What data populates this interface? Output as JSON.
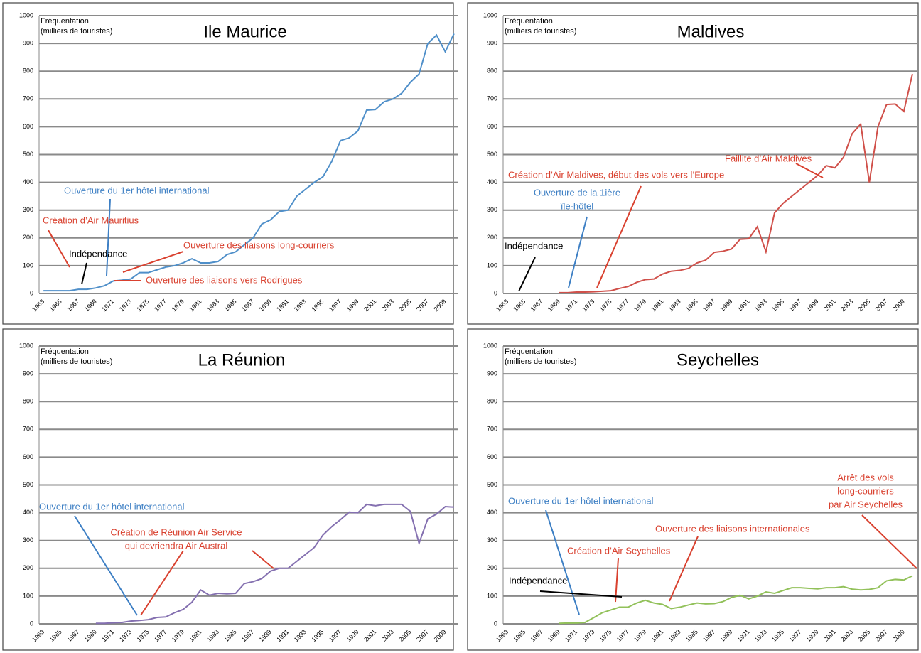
{
  "chart_data": [
    {
      "type": "line",
      "title": "Ile Maurice",
      "y_label": [
        "Fréquentation",
        "(milliers de touristes)"
      ],
      "categories": [
        "1963",
        null,
        "1965",
        null,
        "1967",
        null,
        "1969",
        null,
        "1971",
        null,
        "1973",
        null,
        "1975",
        null,
        "1977",
        null,
        "1979",
        null,
        "1981",
        null,
        "1983",
        null,
        "1985",
        null,
        "1987",
        null,
        "1989",
        null,
        "1991",
        null,
        "1993",
        null,
        "1995",
        null,
        "1997",
        null,
        "1999",
        null,
        "2001",
        null,
        "2003",
        null,
        "2005",
        null,
        "2007",
        null,
        "2009",
        null
      ],
      "values": [
        10,
        10,
        10,
        10,
        15,
        15,
        20,
        28,
        45,
        48,
        52,
        75,
        75,
        85,
        95,
        100,
        110,
        125,
        110,
        110,
        115,
        140,
        150,
        175,
        200,
        250,
        265,
        295,
        300,
        350,
        375,
        400,
        420,
        475,
        550,
        560,
        585,
        660,
        662,
        690,
        700,
        720,
        760,
        790,
        900,
        930,
        870,
        935
      ],
      "color": "#4f8fc9",
      "ylim": [
        0,
        1000
      ],
      "yticks": [
        0,
        100,
        200,
        300,
        400,
        500,
        600,
        700,
        800,
        900,
        1000
      ],
      "grid": true,
      "annotations": [
        {
          "text": [
            "Ouverture du 1er hôtel international"
          ],
          "color": "#3d7fc4"
        },
        {
          "text": [
            "Création d’Air Mauritius"
          ],
          "color": "#d9412f"
        },
        {
          "text": [
            "Indépendance"
          ],
          "color": "#000000"
        },
        {
          "text": [
            "Ouverture des liaisons long-courriers"
          ],
          "color": "#d9412f"
        },
        {
          "text": [
            "Ouverture des liaisons vers Rodrigues"
          ],
          "color": "#d9412f"
        }
      ]
    },
    {
      "type": "line",
      "title": "Maldives",
      "y_label": [
        "Fréquentation",
        "(milliers de touristes)"
      ],
      "categories": [
        "1963",
        null,
        "1965",
        null,
        "1967",
        null,
        "1969",
        null,
        "1971",
        null,
        "1973",
        null,
        "1975",
        null,
        "1977",
        null,
        "1979",
        null,
        "1981",
        null,
        "1983",
        null,
        "1985",
        null,
        "1987",
        null,
        "1989",
        null,
        "1991",
        null,
        "1993",
        null,
        "1995",
        null,
        "1997",
        null,
        "1999",
        null,
        "2001",
        null,
        "2003",
        null,
        "2005",
        null,
        "2007",
        null,
        "2009",
        null
      ],
      "values": [
        null,
        null,
        null,
        null,
        null,
        null,
        3,
        3,
        5,
        5,
        6,
        8,
        10,
        18,
        25,
        40,
        50,
        52,
        70,
        80,
        83,
        90,
        110,
        120,
        148,
        152,
        160,
        195,
        197,
        240,
        150,
        290,
        325,
        350,
        375,
        400,
        425,
        460,
        452,
        490,
        575,
        610,
        400,
        600,
        680,
        682,
        655,
        790
      ],
      "color": "#d0504a",
      "ylim": [
        0,
        1000
      ],
      "yticks": [
        0,
        100,
        200,
        300,
        400,
        500,
        600,
        700,
        800,
        900,
        1000
      ],
      "grid": true,
      "annotations": [
        {
          "text": [
            "Faillite d’Air Maldives"
          ],
          "color": "#d9412f"
        },
        {
          "text": [
            "Création d’Air Maldives, début des vols vers l’Europe"
          ],
          "color": "#d9412f"
        },
        {
          "text": [
            "Ouverture de la 1ière",
            "île-hôtel"
          ],
          "color": "#3d7fc4"
        },
        {
          "text": [
            "Indépendance"
          ],
          "color": "#000000"
        }
      ]
    },
    {
      "type": "line",
      "title": "La Réunion",
      "y_label": [
        "Fréquentation",
        "(milliers de touristes)"
      ],
      "categories": [
        "1963",
        null,
        "1965",
        null,
        "1967",
        null,
        "1969",
        null,
        "1971",
        null,
        "1973",
        null,
        "1975",
        null,
        "1977",
        null,
        "1979",
        null,
        "1981",
        null,
        "1983",
        null,
        "1985",
        null,
        "1987",
        null,
        "1989",
        null,
        "1991",
        null,
        "1993",
        null,
        "1995",
        null,
        "1997",
        null,
        "1999",
        null,
        "2001",
        null,
        "2003",
        null,
        "2005",
        null,
        "2007",
        null,
        "2009",
        null
      ],
      "values": [
        null,
        null,
        null,
        null,
        null,
        null,
        2,
        2,
        4,
        5,
        10,
        12,
        15,
        23,
        25,
        40,
        52,
        78,
        122,
        103,
        110,
        108,
        110,
        145,
        152,
        163,
        190,
        200,
        200,
        225,
        250,
        275,
        320,
        350,
        375,
        402,
        400,
        430,
        425,
        430,
        430,
        430,
        405,
        290,
        378,
        395,
        422,
        420
      ],
      "color": "#8470b0",
      "ylim": [
        0,
        1000
      ],
      "yticks": [
        0,
        100,
        200,
        300,
        400,
        500,
        600,
        700,
        800,
        900,
        1000
      ],
      "grid": true,
      "annotations": [
        {
          "text": [
            "Ouverture du 1er hôtel international"
          ],
          "color": "#3d7fc4"
        },
        {
          "text": [
            "Création de Réunion Air Service",
            "qui devriendra Air Austral"
          ],
          "color": "#d9412f"
        }
      ]
    },
    {
      "type": "line",
      "title": "Seychelles",
      "y_label": [
        "Fréquentation",
        "(milliers de touristes)"
      ],
      "categories": [
        "1963",
        null,
        "1965",
        null,
        "1967",
        null,
        "1969",
        null,
        "1971",
        null,
        "1973",
        null,
        "1975",
        null,
        "1977",
        null,
        "1979",
        null,
        "1981",
        null,
        "1983",
        null,
        "1985",
        null,
        "1987",
        null,
        "1989",
        null,
        "1991",
        null,
        "1993",
        null,
        "1995",
        null,
        "1997",
        null,
        "1999",
        null,
        "2001",
        null,
        "2003",
        null,
        "2005",
        null,
        "2007",
        null,
        "2009",
        null
      ],
      "values": [
        null,
        null,
        null,
        null,
        null,
        null,
        2,
        3,
        3,
        5,
        22,
        40,
        50,
        60,
        60,
        75,
        85,
        75,
        70,
        55,
        60,
        68,
        75,
        72,
        73,
        80,
        95,
        103,
        90,
        100,
        115,
        110,
        120,
        130,
        130,
        128,
        126,
        130,
        130,
        134,
        125,
        122,
        124,
        130,
        155,
        160,
        158,
        173
      ],
      "color": "#92c15a",
      "ylim": [
        0,
        1000
      ],
      "yticks": [
        0,
        100,
        200,
        300,
        400,
        500,
        600,
        700,
        800,
        900,
        1000
      ],
      "grid": true,
      "annotations": [
        {
          "text": [
            "Arrêt des vols",
            "long-courriers",
            "par Air Seychelles"
          ],
          "color": "#d9412f"
        },
        {
          "text": [
            "Ouverture du 1er hôtel international"
          ],
          "color": "#3d7fc4"
        },
        {
          "text": [
            "Ouverture des liaisons internationales"
          ],
          "color": "#d9412f"
        },
        {
          "text": [
            "Création d’Air Seychelles"
          ],
          "color": "#d9412f"
        },
        {
          "text": [
            "Indépendance"
          ],
          "color": "#000000"
        }
      ]
    }
  ]
}
